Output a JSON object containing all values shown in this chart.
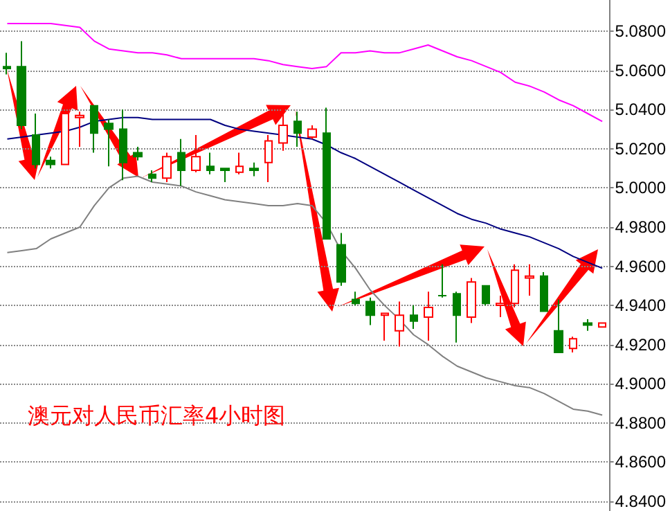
{
  "chart_data": {
    "type": "candlestick",
    "title": "澳元对人民币汇率4小时图",
    "categories": [
      null,
      null,
      null,
      null,
      null,
      null,
      null,
      null,
      null,
      null,
      null,
      null,
      null,
      null,
      null,
      null,
      null,
      null,
      null,
      null,
      null,
      null,
      null,
      null,
      null,
      null,
      null,
      null,
      null,
      null,
      null,
      null,
      null,
      null,
      null,
      null,
      null,
      null,
      null,
      null,
      null,
      null
    ],
    "ohlc": [
      [
        5.062,
        5.069,
        5.058,
        5.061
      ],
      [
        5.062,
        5.075,
        5.03,
        5.032
      ],
      [
        5.027,
        5.038,
        5.01,
        5.012
      ],
      [
        5.014,
        5.016,
        5.01,
        5.012
      ],
      [
        5.012,
        5.039,
        5.012,
        5.038
      ],
      [
        5.036,
        5.039,
        5.021,
        5.037
      ],
      [
        5.042,
        5.042,
        5.018,
        5.028
      ],
      [
        5.033,
        5.035,
        5.011,
        5.03
      ],
      [
        5.03,
        5.04,
        5.004,
        5.013
      ],
      [
        5.018,
        5.021,
        5.014,
        5.016
      ],
      [
        5.007,
        5.009,
        5.003,
        5.005
      ],
      [
        5.005,
        5.018,
        5.003,
        5.016
      ],
      [
        5.018,
        5.025,
        5.001,
        5.009
      ],
      [
        5.009,
        5.027,
        5.008,
        5.016
      ],
      [
        5.011,
        5.018,
        5.007,
        5.009
      ],
      [
        5.01,
        5.01,
        5.003,
        5.009
      ],
      [
        5.008,
        5.018,
        5.007,
        5.011
      ],
      [
        5.01,
        5.013,
        5.006,
        5.009
      ],
      [
        5.013,
        5.027,
        5.003,
        5.024
      ],
      [
        5.023,
        5.041,
        5.019,
        5.032
      ],
      [
        5.034,
        5.039,
        5.021,
        5.028
      ],
      [
        5.026,
        5.032,
        5.025,
        5.03
      ],
      [
        5.028,
        5.041,
        4.974,
        4.974
      ],
      [
        4.971,
        4.977,
        4.95,
        4.952
      ],
      [
        4.943,
        4.947,
        4.94,
        4.941
      ],
      [
        4.942,
        4.944,
        4.93,
        4.935
      ],
      [
        4.935,
        4.936,
        4.922,
        4.936
      ],
      [
        4.927,
        4.942,
        4.919,
        4.935
      ],
      [
        4.935,
        4.94,
        4.928,
        4.932
      ],
      [
        4.934,
        4.947,
        4.922,
        4.939
      ],
      [
        4.945,
        4.961,
        4.944,
        4.945
      ],
      [
        4.946,
        4.947,
        4.921,
        4.935
      ],
      [
        4.934,
        4.954,
        4.931,
        4.952
      ],
      [
        4.95,
        4.95,
        4.94,
        4.941
      ],
      [
        4.94,
        4.945,
        4.934,
        4.941
      ],
      [
        4.941,
        4.961,
        4.939,
        4.958
      ],
      [
        4.954,
        4.961,
        4.945,
        4.955
      ],
      [
        4.955,
        4.957,
        4.937,
        4.937
      ],
      [
        4.927,
        4.943,
        4.916,
        4.916
      ],
      [
        4.918,
        4.924,
        4.916,
        4.923
      ],
      [
        4.931,
        4.933,
        4.927,
        4.93
      ],
      [
        4.929,
        4.931,
        4.929,
        4.931
      ]
    ],
    "colors": [
      "#008000",
      "#008000",
      "#008000",
      "#008000",
      "#ff0000",
      "#ff0000",
      "#008000",
      "#008000",
      "#008000",
      "#008000",
      "#008000",
      "#ff0000",
      "#008000",
      "#ff0000",
      "#008000",
      "#008000",
      "#ff0000",
      "#008000",
      "#ff0000",
      "#ff0000",
      "#008000",
      "#ff0000",
      "#008000",
      "#008000",
      "#008000",
      "#008000",
      "#ff0000",
      "#ff0000",
      "#008000",
      "#ff0000",
      "#008000",
      "#008000",
      "#ff0000",
      "#008000",
      "#ff0000",
      "#ff0000",
      "#ff0000",
      "#008000",
      "#008000",
      "#ff0000",
      "#008000",
      "#ff0000"
    ],
    "series": [
      {
        "type": "line",
        "color": "#ff00ff",
        "values": [
          5.084,
          5.084,
          5.084,
          5.084,
          5.083,
          5.082,
          5.075,
          5.071,
          5.07,
          5.069,
          5.069,
          5.068,
          5.066,
          5.066,
          5.066,
          5.066,
          5.066,
          5.066,
          5.065,
          5.063,
          5.062,
          5.061,
          5.062,
          5.069,
          5.069,
          5.07,
          5.069,
          5.069,
          5.071,
          5.073,
          5.07,
          5.067,
          5.065,
          5.062,
          5.059,
          5.054,
          5.052,
          5.049,
          5.045,
          5.042,
          5.038,
          5.034
        ]
      },
      {
        "type": "line",
        "color": "#000080",
        "values": [
          5.025,
          5.026,
          5.027,
          5.028,
          5.029,
          5.031,
          5.034,
          5.035,
          5.036,
          5.036,
          5.035,
          5.035,
          5.035,
          5.035,
          5.035,
          5.032,
          5.03,
          5.029,
          5.028,
          5.027,
          5.026,
          5.025,
          5.022,
          5.018,
          5.015,
          5.011,
          5.007,
          5.003,
          4.999,
          4.995,
          4.991,
          4.987,
          4.984,
          4.982,
          4.979,
          4.977,
          4.975,
          4.972,
          4.969,
          4.965,
          4.962,
          4.959
        ]
      },
      {
        "type": "line",
        "color": "#808080",
        "values": [
          4.967,
          4.968,
          4.969,
          4.974,
          4.977,
          4.98,
          4.991,
          5.0,
          5.005,
          5.006,
          5.003,
          5.002,
          5.001,
          4.998,
          4.996,
          4.994,
          4.993,
          4.992,
          4.991,
          4.991,
          4.992,
          4.991,
          4.982,
          4.968,
          4.959,
          4.948,
          4.94,
          4.933,
          4.925,
          4.92,
          4.914,
          4.909,
          4.906,
          4.903,
          4.901,
          4.899,
          4.898,
          4.895,
          4.891,
          4.887,
          4.886,
          4.884
        ]
      }
    ],
    "ylim": [
      4.835,
      5.096
    ],
    "yticks": [
      {
        "value": 4.84,
        "label": "4.8400"
      },
      {
        "value": 4.86,
        "label": "4.8600"
      },
      {
        "value": 4.88,
        "label": "4.8800"
      },
      {
        "value": 4.9,
        "label": "4.9000"
      },
      {
        "value": 4.92,
        "label": "4.9200"
      },
      {
        "value": 4.94,
        "label": "4.9400"
      },
      {
        "value": 4.96,
        "label": "4.9600"
      },
      {
        "value": 4.98,
        "label": "4.9800"
      },
      {
        "value": 5.0,
        "label": "5.0000"
      },
      {
        "value": 5.02,
        "label": "5.0200"
      },
      {
        "value": 5.04,
        "label": "5.0400"
      },
      {
        "value": 5.06,
        "label": "5.0600"
      },
      {
        "value": 5.08,
        "label": "5.0800"
      }
    ],
    "grid": "y",
    "tick_labels": "y",
    "marker": "none"
  }
}
